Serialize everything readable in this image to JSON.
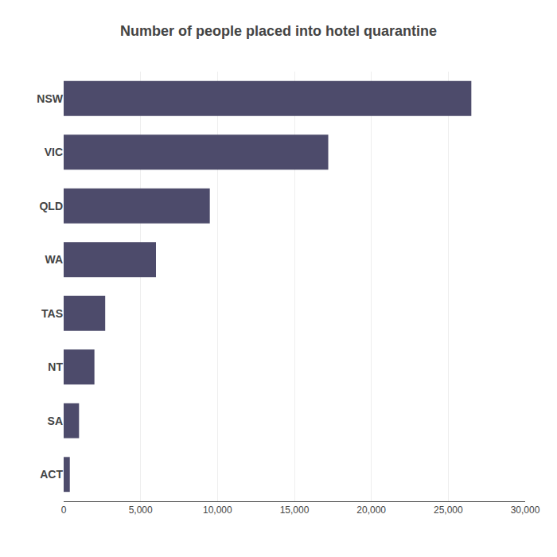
{
  "chart_data": {
    "type": "bar",
    "orientation": "horizontal",
    "title": "Number of people placed into hotel quarantine",
    "categories": [
      "NSW",
      "VIC",
      "QLD",
      "WA",
      "TAS",
      "NT",
      "SA",
      "ACT"
    ],
    "values": [
      26500,
      17200,
      9500,
      6000,
      2700,
      2000,
      1000,
      400
    ],
    "color": "#4d4b6b",
    "xlim": [
      0,
      30000
    ],
    "xticks": [
      0,
      {
        "value": 5000,
        "label": "5,000"
      },
      {
        "value": 10000,
        "label": "10,000"
      },
      {
        "value": 15000,
        "label": "15,000"
      },
      {
        "value": 20000,
        "label": "20,000"
      },
      {
        "value": 25000,
        "label": "25,000"
      },
      {
        "value": 30000,
        "label": "30,000"
      }
    ],
    "grid": true
  }
}
